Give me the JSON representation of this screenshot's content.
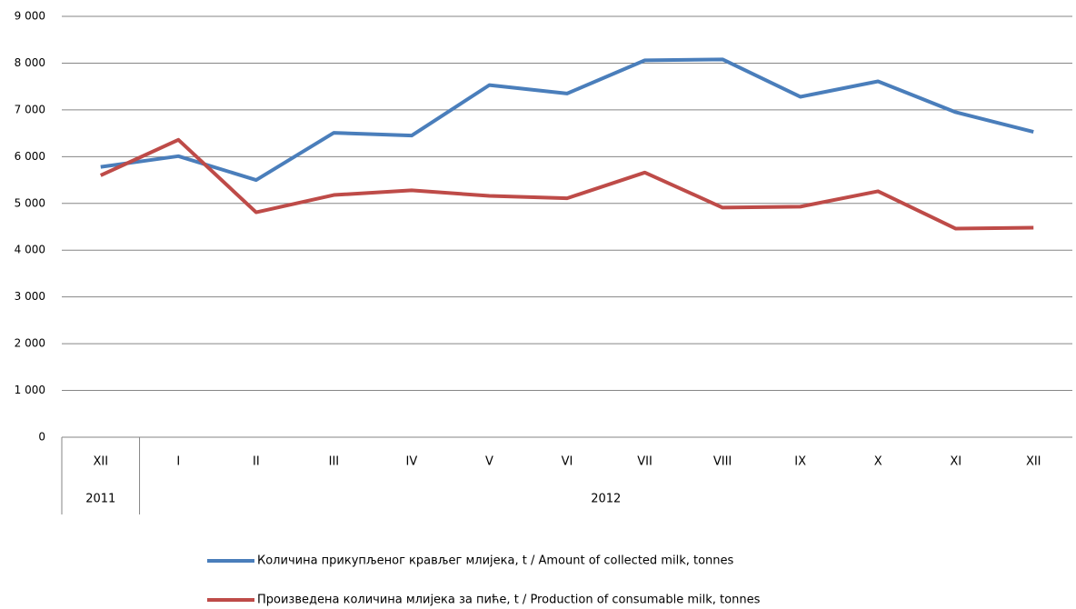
{
  "chart_data": {
    "type": "line",
    "categories": [
      "XII",
      "I",
      "II",
      "III",
      "IV",
      "V",
      "VI",
      "VII",
      "VIII",
      "IX",
      "X",
      "XI",
      "XII"
    ],
    "years": [
      "2011",
      "2012",
      null,
      null,
      null,
      null,
      null,
      null,
      null,
      null,
      null,
      null,
      null
    ],
    "series": [
      {
        "name": "Количина прикупљеног крављег млијека, t / Amount of collected milk, tonnes",
        "color": "#4a7ebb",
        "values": [
          5780,
          6010,
          5500,
          6510,
          6450,
          7530,
          7350,
          8060,
          8080,
          7280,
          7610,
          6950,
          6530
        ]
      },
      {
        "name": "Произведена количина млијека за пиће, t / Production of consumable milk, tonnes",
        "color": "#be4b48",
        "values": [
          5600,
          6360,
          4810,
          5180,
          5280,
          5160,
          5110,
          5660,
          4910,
          4930,
          5260,
          4460,
          4480
        ]
      }
    ],
    "ylim": [
      0,
      9000
    ],
    "yticks": [
      0,
      {
        "value": 1000,
        "label": "1 000"
      },
      {
        "value": 2000,
        "label": "2 000"
      },
      {
        "value": 3000,
        "label": "3 000"
      },
      {
        "value": 4000,
        "label": "4 000"
      },
      {
        "value": 5000,
        "label": "5 000"
      },
      {
        "value": 6000,
        "label": "6 000"
      },
      {
        "value": 7000,
        "label": "7 000"
      },
      {
        "value": 8000,
        "label": "8 000"
      },
      {
        "value": 9000,
        "label": "9 000"
      }
    ],
    "grid": true,
    "legend": "bottom"
  }
}
